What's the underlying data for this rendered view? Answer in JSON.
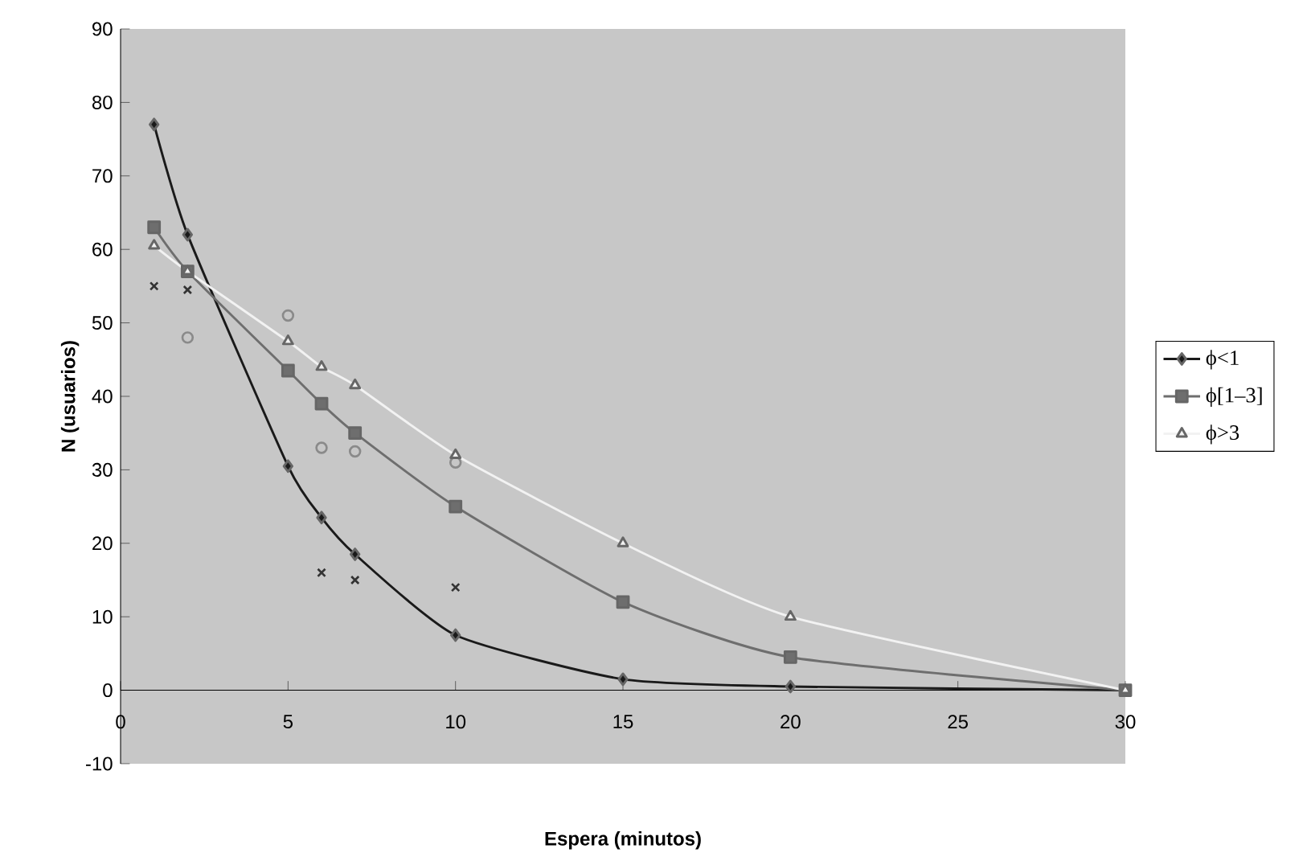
{
  "chart_data": {
    "type": "line",
    "xlabel": "Espera (minutos)",
    "ylabel": "N (usuarios)",
    "xlim": [
      0,
      30
    ],
    "xticks": [
      0,
      5,
      10,
      15,
      20,
      25,
      30
    ],
    "ylim": [
      -10,
      90
    ],
    "yticks": [
      -10,
      0,
      10,
      20,
      30,
      40,
      50,
      60,
      70,
      80,
      90
    ],
    "grid": false,
    "legend": "right",
    "series": [
      {
        "name": "ϕ<1",
        "color": "#1a1a1a",
        "marker": "diamond",
        "x": [
          1,
          2,
          5,
          6,
          7,
          10,
          15,
          20,
          30
        ],
        "values": [
          77,
          62,
          30.5,
          23.5,
          18.5,
          7.5,
          1.5,
          0.5,
          0
        ]
      },
      {
        "type": "scatter",
        "color": "#333333",
        "marker": "cross",
        "x": [
          1,
          2,
          6,
          7,
          10
        ],
        "values": [
          55,
          54.5,
          16,
          15,
          14
        ]
      },
      {
        "name": "ϕ[1–3]",
        "color": "#6e6e6e",
        "marker": "square",
        "x": [
          1,
          2,
          5,
          6,
          7,
          10,
          15,
          20,
          30
        ],
        "values": [
          63,
          57,
          43.5,
          39,
          35,
          25,
          12,
          4.5,
          0
        ]
      },
      {
        "type": "scatter",
        "color": "#8a8a8a",
        "marker": "circle",
        "x": [
          2,
          5,
          6,
          7,
          10
        ],
        "values": [
          48,
          51,
          33,
          32.5,
          31
        ]
      },
      {
        "name": "ϕ>3",
        "color": "#f2f2f2",
        "marker": "triangle",
        "x": [
          1,
          2,
          5,
          6,
          7,
          10,
          15,
          20,
          30
        ],
        "values": [
          60.5,
          57,
          47.5,
          44,
          41.5,
          32,
          20,
          10,
          0
        ]
      }
    ]
  }
}
